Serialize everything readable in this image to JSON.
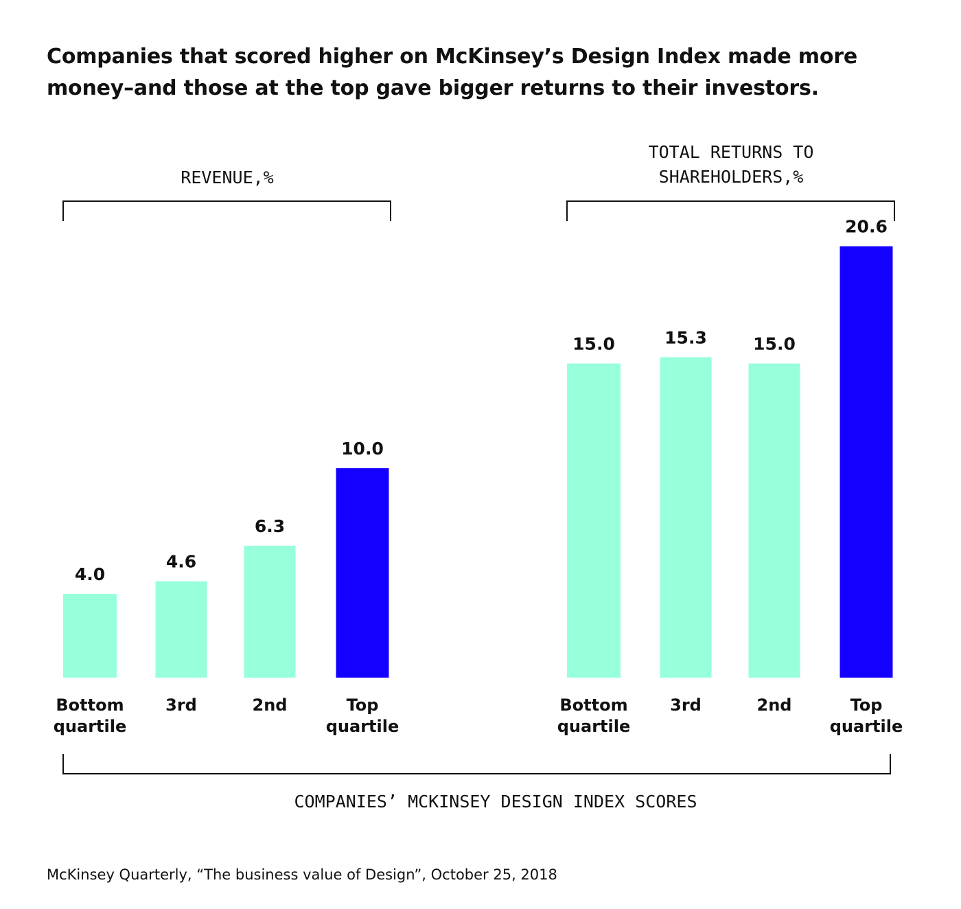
{
  "title": "Companies that scored higher on McKinsey’s Design Index made more money–and those at the top gave bigger returns to their investors.",
  "source": "McKinsey Quarterly, “The business value of Design”, October 25, 2018",
  "xaxis_label": "COMPANIES’ MCKINSEY DESIGN INDEX SCORES",
  "colors": {
    "base_bar": "#98FFDB",
    "highlight_bar": "#1400FF",
    "text": "#111111"
  },
  "chart_data": [
    {
      "type": "bar",
      "title": "REVENUE,%",
      "categories": [
        [
          "Bottom",
          "quartile"
        ],
        [
          "3rd"
        ],
        [
          "2nd"
        ],
        [
          "Top",
          "quartile"
        ]
      ],
      "values": [
        4.0,
        4.6,
        6.3,
        10.0
      ],
      "value_labels": [
        "4.0",
        "4.6",
        "6.3",
        "10.0"
      ],
      "highlight_index": 3,
      "ylim": [
        0,
        22
      ],
      "grid": false,
      "axes_visible": false
    },
    {
      "type": "bar",
      "title": "TOTAL RETURNS TO SHAREHOLDERS,%",
      "title_lines": [
        "TOTAL RETURNS TO",
        "SHAREHOLDERS,%"
      ],
      "categories": [
        [
          "Bottom",
          "quartile"
        ],
        [
          "3rd"
        ],
        [
          "2nd"
        ],
        [
          "Top",
          "quartile"
        ]
      ],
      "values": [
        15.0,
        15.3,
        15.0,
        20.6
      ],
      "value_labels": [
        "15.0",
        "15.3",
        "15.0",
        "20.6"
      ],
      "highlight_index": 3,
      "ylim": [
        0,
        22
      ],
      "grid": false,
      "axes_visible": false
    }
  ]
}
